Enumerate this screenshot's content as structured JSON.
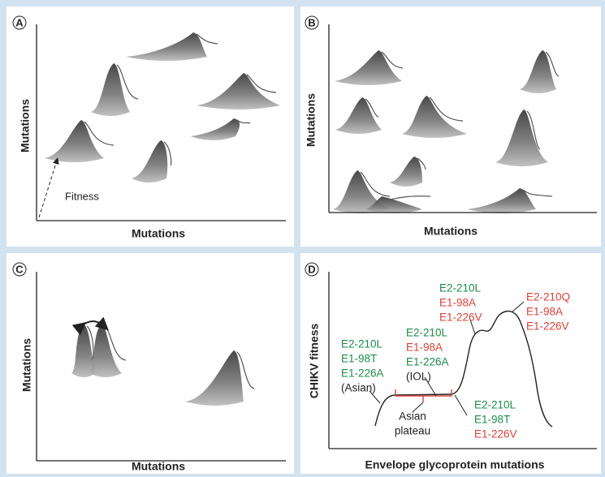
{
  "panels": [
    {
      "label": "A",
      "x_axis": "Mutations",
      "y_axis": "Mutations",
      "annotation": "Fitness"
    },
    {
      "label": "B",
      "x_axis": "Mutations",
      "y_axis": "Mutations"
    },
    {
      "label": "C",
      "x_axis": "Mutations",
      "y_axis": "Mutations"
    },
    {
      "label": "D",
      "x_axis": "Envelope glycoprotein mutations",
      "y_axis": "CHIKV fitness",
      "annotations": [
        [
          "E2-210L",
          "E1-98T",
          "E1-226A",
          "(Asian)"
        ],
        [
          "E2-210L",
          "E1-98A",
          "E1-226A",
          "(IOL)"
        ],
        [
          "E2-210L",
          "E1-98A",
          "E1-226V"
        ],
        [
          "E2-210Q",
          "E1-98A",
          "E1-226V"
        ],
        [
          "E2-210L",
          "E1-98T",
          "E1-226V"
        ],
        [
          "Asian",
          "plateau"
        ]
      ]
    }
  ]
}
